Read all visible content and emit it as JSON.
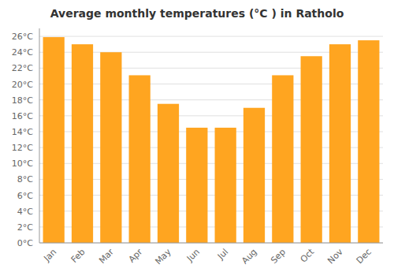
{
  "chart_data": {
    "type": "bar",
    "title": "Average monthly temperatures (°C ) in Ratholo",
    "categories": [
      "Jan",
      "Feb",
      "Mar",
      "Apr",
      "May",
      "Jun",
      "Jul",
      "Aug",
      "Sep",
      "Oct",
      "Nov",
      "Dec"
    ],
    "values": [
      25.9,
      25.0,
      24.0,
      21.1,
      17.5,
      14.5,
      14.5,
      17.0,
      21.1,
      23.5,
      25.0,
      25.5
    ],
    "color": "#FFA520",
    "ylim": [
      0,
      27
    ],
    "yticks": [
      {
        "value": 0,
        "label": "0°C"
      },
      {
        "value": 2,
        "label": "2°C"
      },
      {
        "value": 4,
        "label": "4°C"
      },
      {
        "value": 6,
        "label": "6°C"
      },
      {
        "value": 8,
        "label": "8°C"
      },
      {
        "value": 10,
        "label": "10°C"
      },
      {
        "value": 12,
        "label": "12°C"
      },
      {
        "value": 14,
        "label": "14°C"
      },
      {
        "value": 16,
        "label": "16°C"
      },
      {
        "value": 18,
        "label": "18°C"
      },
      {
        "value": 20,
        "label": "20°C"
      },
      {
        "value": 22,
        "label": "22°C"
      },
      {
        "value": 24,
        "label": "24°C"
      },
      {
        "value": 26,
        "label": "26°C"
      }
    ],
    "grid": true
  }
}
